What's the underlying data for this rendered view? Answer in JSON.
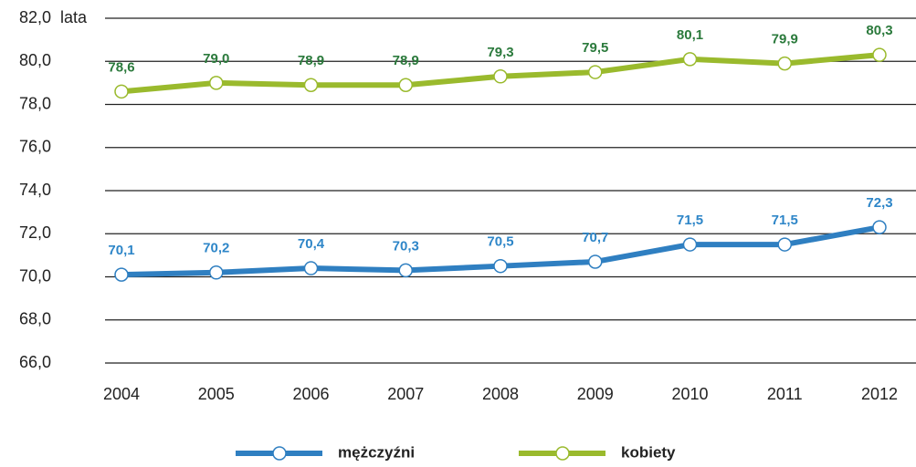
{
  "chart_data": {
    "type": "line",
    "y_label": "lata",
    "categories": [
      "2004",
      "2005",
      "2006",
      "2007",
      "2008",
      "2009",
      "2010",
      "2011",
      "2012"
    ],
    "series": [
      {
        "name": "mężczyźni",
        "color": "#2f7fc1",
        "label_color": "#2e86c8",
        "values": [
          70.1,
          70.2,
          70.4,
          70.3,
          70.5,
          70.7,
          71.5,
          71.5,
          72.3
        ],
        "value_labels": [
          "70,1",
          "70,2",
          "70,4",
          "70,3",
          "70,5",
          "70,7",
          "71,5",
          "71,5",
          "72,3"
        ]
      },
      {
        "name": "kobiety",
        "color": "#9aba2d",
        "label_color": "#2b7a3c",
        "values": [
          78.6,
          79.0,
          78.9,
          78.9,
          79.3,
          79.5,
          80.1,
          79.9,
          80.3
        ],
        "value_labels": [
          "78,6",
          "79,0",
          "78,9",
          "78,9",
          "79,3",
          "79,5",
          "80,1",
          "79,9",
          "80,3"
        ]
      }
    ],
    "ylim": [
      66,
      82
    ],
    "yticks": [
      {
        "value": 66,
        "label": "66,0"
      },
      {
        "value": 68,
        "label": "68,0"
      },
      {
        "value": 70,
        "label": "70,0"
      },
      {
        "value": 72,
        "label": "72,0"
      },
      {
        "value": 74,
        "label": "74,0"
      },
      {
        "value": 76,
        "label": "76,0"
      },
      {
        "value": 78,
        "label": "78,0"
      },
      {
        "value": 80,
        "label": "80,0"
      },
      {
        "value": 82,
        "label": "82,0"
      }
    ],
    "grid": true
  }
}
